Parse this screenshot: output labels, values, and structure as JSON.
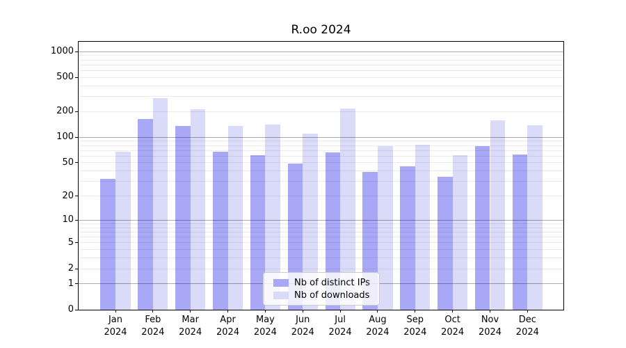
{
  "title": "R.oo 2024",
  "chart_data": {
    "type": "bar",
    "title": "R.oo 2024",
    "categories": [
      "Jan 2024",
      "Feb 2024",
      "Mar 2024",
      "Apr 2024",
      "May 2024",
      "Jun 2024",
      "Jul 2024",
      "Aug 2024",
      "Sep 2024",
      "Oct 2024",
      "Nov 2024",
      "Dec 2024"
    ],
    "series": [
      {
        "name": "Nb of distinct IPs",
        "color": "#a8a8f6",
        "values": [
          32,
          163,
          135,
          68,
          62,
          49,
          66,
          39,
          45,
          34,
          79,
          63
        ]
      },
      {
        "name": "Nb of downloads",
        "color": "#dadaf9",
        "values": [
          68,
          288,
          213,
          136,
          140,
          111,
          217,
          78,
          82,
          61,
          158,
          138
        ]
      }
    ],
    "xlabel": "",
    "ylabel": "",
    "yscale": "log10(1+x)",
    "ylim": [
      0,
      1300
    ],
    "yticks": [
      0,
      1,
      2,
      5,
      10,
      20,
      50,
      100,
      200,
      500,
      1000
    ],
    "grid": {
      "on": true,
      "major_lines": [
        1,
        10,
        100,
        1000
      ],
      "minor_lines": [
        2,
        3,
        4,
        5,
        6,
        7,
        8,
        9,
        20,
        30,
        40,
        50,
        60,
        70,
        80,
        90,
        200,
        300,
        400,
        500,
        600,
        700,
        800,
        900
      ]
    },
    "legend_position": "lower center"
  }
}
